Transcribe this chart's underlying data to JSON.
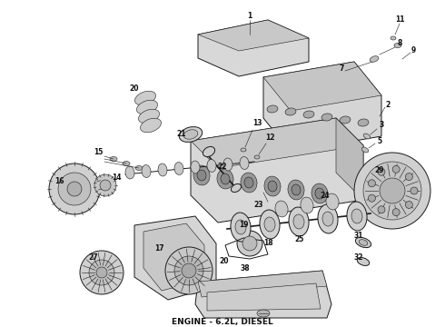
{
  "caption": "ENGINE - 6.2L, DIESEL",
  "caption_fontsize": 6.5,
  "caption_fontweight": "bold",
  "bg_color": "#ffffff",
  "fig_width": 4.9,
  "fig_height": 3.6,
  "dpi": 100,
  "lc": "#1a1a1a",
  "fill_light": "#e8e8e8",
  "fill_mid": "#cccccc",
  "fill_dark": "#aaaaaa",
  "lw_main": 0.7,
  "lw_thin": 0.4,
  "lw_thick": 1.2
}
